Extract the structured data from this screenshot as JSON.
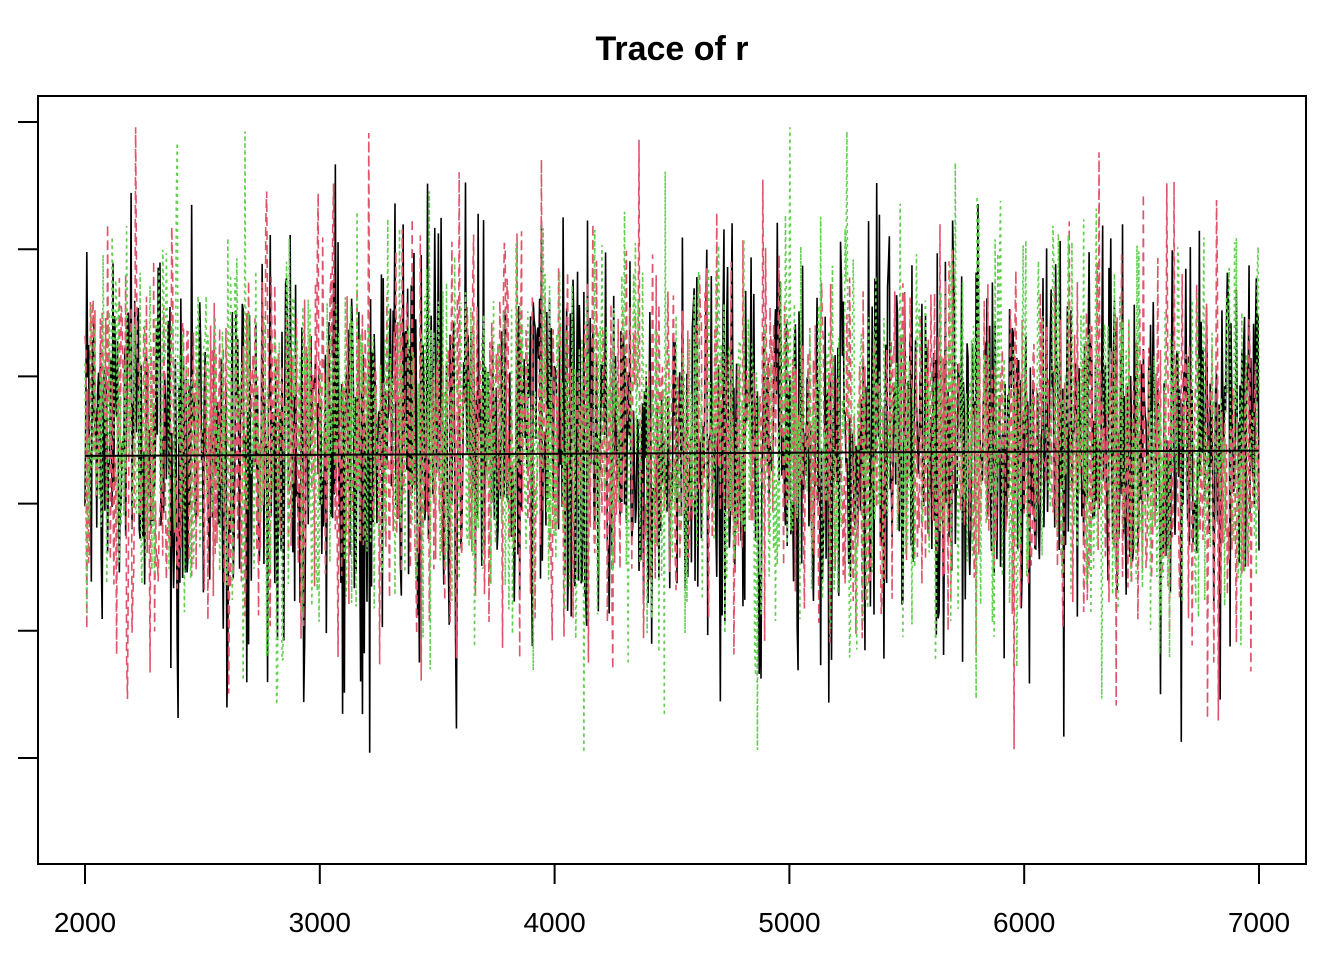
{
  "chart_data": {
    "type": "line",
    "title": "Trace of r",
    "xlabel": "",
    "ylabel": "",
    "xlim": [
      2000,
      7000
    ],
    "ylim": [
      -3,
      3
    ],
    "x_ticks": [
      "2000",
      "3000",
      "4000",
      "5000",
      "6000",
      "7000"
    ],
    "y_ticks_count": 6,
    "y_tick_labels_visible": false,
    "grid": false,
    "legend": "none",
    "chains": [
      {
        "color": "#000000",
        "linestyle": "solid",
        "mean": 0.0
      },
      {
        "color": "#DF536B",
        "linestyle": "dashed",
        "mean": 0.0
      },
      {
        "color": "#61D04F",
        "linestyle": "dotted",
        "mean": 0.0
      }
    ],
    "running_mean": {
      "color": "#000000",
      "start": -0.15,
      "end": -0.1
    }
  }
}
